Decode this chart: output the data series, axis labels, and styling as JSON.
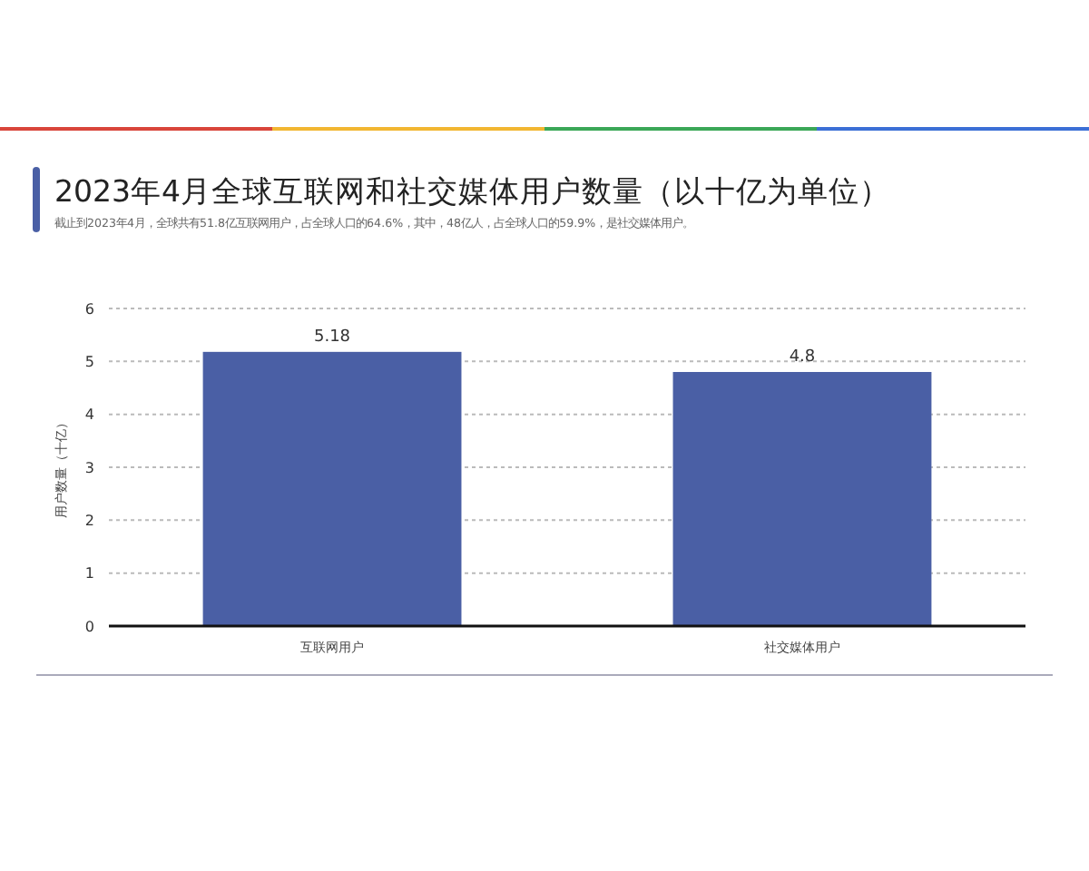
{
  "chart_data": {
    "type": "bar",
    "title": "2023年4月全球互联网和社交媒体用户数量（以十亿为单位）",
    "subtitle": "截止到2023年4月，全球共有51.8亿互联网用户，占全球人口的64.6%，其中，48亿人，占全球人口的59.9%，是社交媒体用户。",
    "ylabel": "用户数量（十亿）",
    "categories": [
      "互联网用户",
      "社交媒体用户"
    ],
    "values": [
      5.18,
      4.8
    ],
    "color": "#4a5fa5",
    "ylim": [
      0,
      6
    ],
    "yticks": [
      0,
      1,
      2,
      3,
      4,
      5,
      6
    ],
    "grid": "y",
    "data_labels": true
  }
}
